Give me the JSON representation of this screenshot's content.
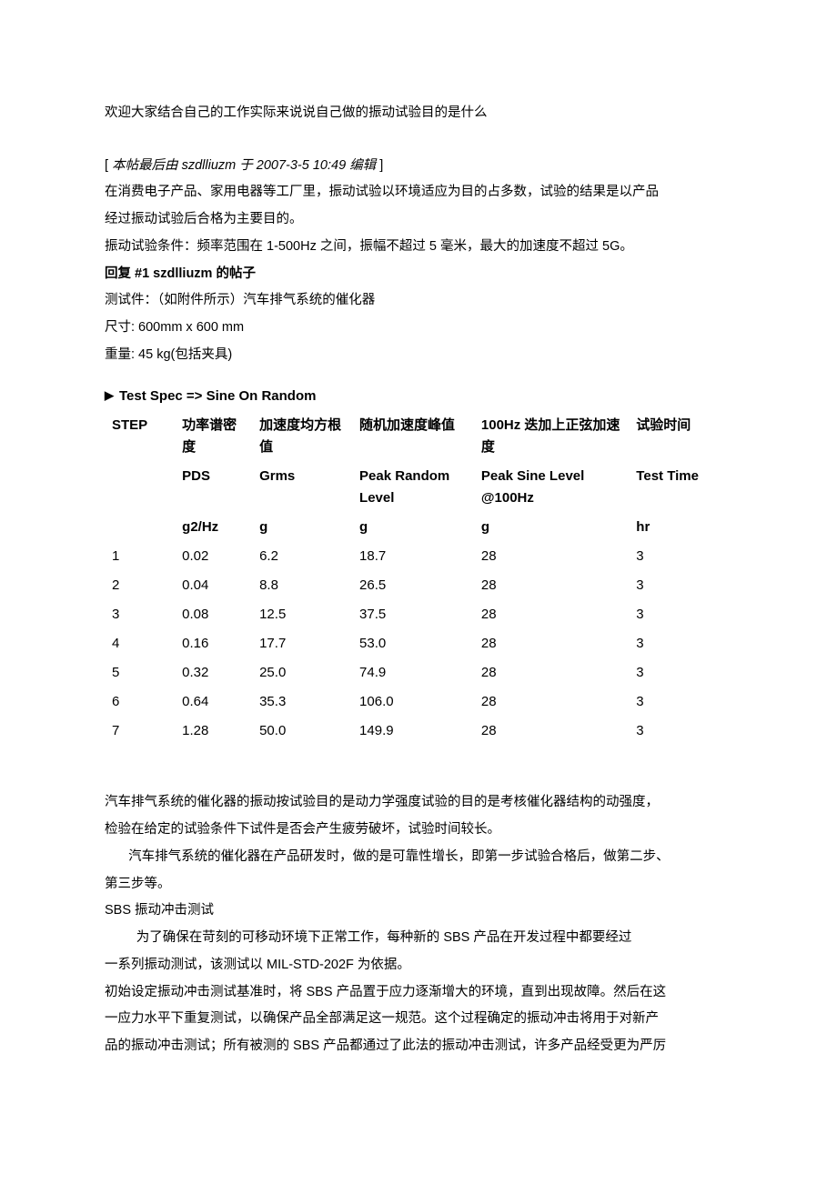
{
  "intro_line": "欢迎大家结合自己的工作实际来说说自己做的振动试验目的是什么",
  "edit_note_open": "[ ",
  "edit_note_label": "本帖最后由 ",
  "edit_note_user": "szdlliuzm ",
  "edit_note_at": "于 ",
  "edit_note_time": "2007-3-5 10:49 ",
  "edit_note_action": "编辑",
  "edit_note_close": " ]",
  "p2a": "在消费电子产品、家用电器等工厂里，振动试验以环境适应为目的占多数，试验的结果是以产品",
  "p2b": "经过振动试验后合格为主要目的。",
  "p3": "振动试验条件：频率范围在 1-500Hz 之间，振幅不超过 5 毫米，最大的加速度不超过 5G。",
  "reply_header": "回复 #1 szdlliuzm 的帖子",
  "p_test_item": "测试件：（如附件所示）汽车排气系统的催化器",
  "p_size": "尺寸: 600mm x 600 mm",
  "p_weight": "重量: 45 kg(包括夹具)",
  "spec_title": "Test Spec => Sine On Random",
  "columns": {
    "step_cn": "STEP",
    "pds_cn": "功率谱密度",
    "grms_cn": "加速度均方根值",
    "peak_cn": "随机加速度峰值",
    "sine_cn": "100Hz 迭加上正弦加速度",
    "time_cn": "试验时间",
    "pds_en": "PDS",
    "grms_en": "Grms",
    "peak_en": "Peak Random Level",
    "sine_en": "Peak Sine Level @100Hz",
    "time_en": "Test Time",
    "pds_unit": "g2/Hz",
    "grms_unit": "g",
    "peak_unit": "g",
    "sine_unit": "g",
    "time_unit": "hr"
  },
  "rows": [
    {
      "step": "1",
      "pds": "0.02",
      "grms": "6.2",
      "peak": "18.7",
      "sine": "28",
      "time": "3"
    },
    {
      "step": "2",
      "pds": "0.04",
      "grms": "8.8",
      "peak": "26.5",
      "sine": "28",
      "time": "3"
    },
    {
      "step": "3",
      "pds": "0.08",
      "grms": "12.5",
      "peak": "37.5",
      "sine": "28",
      "time": "3"
    },
    {
      "step": "4",
      "pds": "0.16",
      "grms": "17.7",
      "peak": "53.0",
      "sine": "28",
      "time": "3"
    },
    {
      "step": "5",
      "pds": "0.32",
      "grms": "25.0",
      "peak": "74.9",
      "sine": "28",
      "time": "3"
    },
    {
      "step": "6",
      "pds": "0.64",
      "grms": "35.3",
      "peak": "106.0",
      "sine": "28",
      "time": "3"
    },
    {
      "step": "7",
      "pds": "1.28",
      "grms": "50.0",
      "peak": "149.9",
      "sine": "28",
      "time": "3"
    }
  ],
  "p4a": "汽车排气系统的催化器的振动按试验目的是动力学强度试验的目的是考核催化器结构的动强度，",
  "p4b": "检验在给定的试验条件下试件是否会产生疲劳破坏，试验时间较长。",
  "p5a": "汽车排气系统的催化器在产品研发时，做的是可靠性增长，即第一步试验合格后，做第二步、",
  "p5b": "第三步等。",
  "p6": "SBS 振动冲击测试",
  "p7a": "为了确保在苛刻的可移动环境下正常工作，每种新的 SBS 产品在开发过程中都要经过",
  "p7b": "一系列振动测试，该测试以 MIL-STD-202F 为依据。",
  "p8a": "初始设定振动冲击测试基准时，将 SBS 产品置于应力逐渐增大的环境，直到出现故障。然后在这",
  "p8b": "一应力水平下重复测试，以确保产品全部满足这一规范。这个过程确定的振动冲击将用于对新产",
  "p8c": "品的振动冲击测试；所有被测的 SBS 产品都通过了此法的振动冲击测试，许多产品经受更为严厉"
}
